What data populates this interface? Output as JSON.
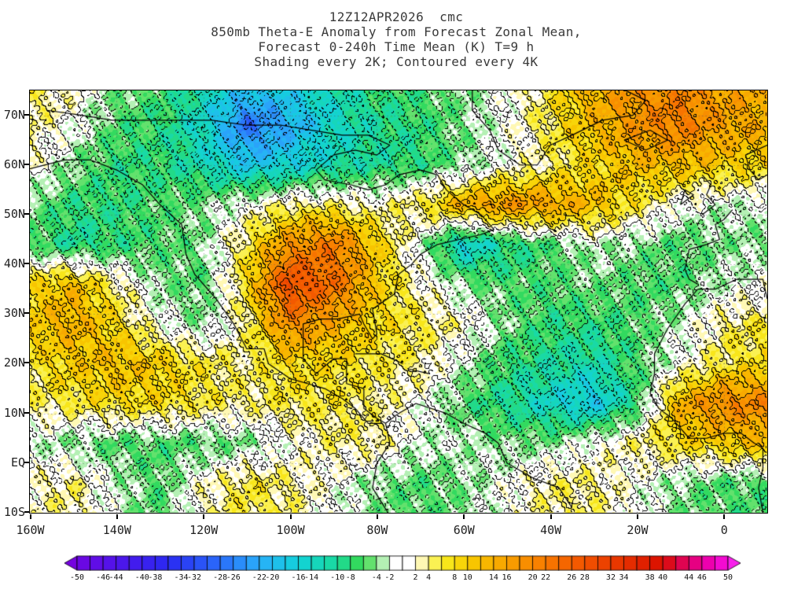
{
  "title": {
    "line1": "12Z12APR2026  cmc",
    "line2": "850mb Theta-E Anomaly from Forecast Zonal Mean,",
    "line3": "Forecast 0-240h Time Mean (K) T=9 h",
    "line4": "Shading every 2K; Contoured every 4K"
  },
  "chart_data": {
    "type": "heatmap",
    "subtype": "filled-contour-anomaly-map",
    "units": "K",
    "shading_interval_K": 2,
    "contour_interval_K": 4,
    "negative_contours_dashed": true,
    "lon_range": [
      -160,
      10
    ],
    "lat_range": [
      -10,
      75
    ],
    "x_axis": {
      "tick_labels": [
        "160W",
        "140W",
        "120W",
        "100W",
        "80W",
        "60W",
        "40W",
        "20W",
        "0"
      ],
      "tick_lons": [
        -160,
        -140,
        -120,
        -100,
        -80,
        -60,
        -40,
        -20,
        0
      ]
    },
    "y_axis": {
      "tick_labels": [
        "70N",
        "60N",
        "50N",
        "40N",
        "30N",
        "20N",
        "10N",
        "EQ",
        "10S"
      ],
      "tick_lats": [
        70,
        60,
        50,
        40,
        30,
        20,
        10,
        0,
        -10
      ]
    },
    "colorbar": {
      "min": -50,
      "max": 50,
      "step": 2,
      "boundary_labels": [
        "-50",
        "-46",
        "-44",
        "-40",
        "-38",
        "-34",
        "-32",
        "-28",
        "-26",
        "-22",
        "-20",
        "-16",
        "-14",
        "-10",
        "-8",
        "-4",
        "-2",
        "2",
        "4",
        "8",
        "10",
        "14",
        "16",
        "20",
        "22",
        "26",
        "28",
        "32",
        "34",
        "38",
        "40",
        "44",
        "46",
        "50"
      ],
      "boundary_values": [
        -50,
        -46,
        -44,
        -40,
        -38,
        -34,
        -32,
        -28,
        -26,
        -22,
        -20,
        -16,
        -14,
        -10,
        -8,
        -4,
        -2,
        2,
        4,
        8,
        10,
        14,
        16,
        20,
        22,
        26,
        28,
        32,
        34,
        38,
        40,
        44,
        46,
        50
      ],
      "palette_stops": [
        [
          -52,
          "#7a00de"
        ],
        [
          -44,
          "#5014ea"
        ],
        [
          -36,
          "#2a2af2"
        ],
        [
          -28,
          "#2a6cfa"
        ],
        [
          -22,
          "#2aaefa"
        ],
        [
          -16,
          "#12d2da"
        ],
        [
          -10,
          "#1ada9c"
        ],
        [
          -6,
          "#3ada4a"
        ],
        [
          -3,
          "#b4f0b4"
        ],
        [
          0,
          "#ffffff"
        ],
        [
          3,
          "#fff8b4"
        ],
        [
          6,
          "#f8ee22"
        ],
        [
          10,
          "#f8cc00"
        ],
        [
          16,
          "#f8a200"
        ],
        [
          22,
          "#f87a00"
        ],
        [
          28,
          "#f25200"
        ],
        [
          34,
          "#e63200"
        ],
        [
          40,
          "#da0e00"
        ],
        [
          44,
          "#e2006c"
        ],
        [
          48,
          "#f000c4"
        ],
        [
          52,
          "#fa2af8"
        ]
      ]
    },
    "grid": {
      "lons": [
        -160,
        -150,
        -140,
        -130,
        -120,
        -110,
        -100,
        -90,
        -80,
        -70,
        -60,
        -50,
        -40,
        -30,
        -20,
        -10,
        0,
        10
      ],
      "lats": [
        76,
        68,
        60,
        52,
        44,
        36,
        28,
        20,
        12,
        4,
        -4,
        -12
      ],
      "values_K": [
        [
          6,
          2,
          -4,
          -6,
          -12,
          -18,
          -16,
          -12,
          -8,
          -6,
          -4,
          0,
          6,
          14,
          18,
          20,
          16,
          14
        ],
        [
          4,
          0,
          -6,
          -8,
          -14,
          -28,
          -22,
          -14,
          -10,
          -8,
          -4,
          0,
          6,
          12,
          18,
          22,
          16,
          14
        ],
        [
          2,
          -4,
          -8,
          -8,
          -12,
          -18,
          -16,
          -12,
          -10,
          -8,
          -4,
          0,
          4,
          8,
          12,
          12,
          10,
          8
        ],
        [
          -4,
          -8,
          -8,
          -6,
          -4,
          0,
          4,
          4,
          2,
          6,
          14,
          18,
          16,
          12,
          6,
          0,
          -2,
          -2
        ],
        [
          -6,
          -10,
          -8,
          -6,
          -4,
          6,
          18,
          22,
          10,
          -2,
          -16,
          -10,
          -6,
          -2,
          -4,
          -6,
          -4,
          -4
        ],
        [
          8,
          12,
          4,
          -4,
          -6,
          8,
          30,
          24,
          10,
          2,
          -4,
          -6,
          -6,
          -4,
          -6,
          -6,
          -2,
          0
        ],
        [
          10,
          14,
          8,
          0,
          -4,
          4,
          20,
          14,
          8,
          6,
          2,
          -4,
          -8,
          -8,
          -6,
          -2,
          4,
          6
        ],
        [
          6,
          10,
          12,
          10,
          6,
          4,
          8,
          8,
          6,
          4,
          -2,
          -8,
          -10,
          -12,
          -6,
          0,
          6,
          8
        ],
        [
          4,
          6,
          8,
          8,
          6,
          4,
          6,
          6,
          4,
          0,
          -6,
          -10,
          -14,
          -18,
          -8,
          14,
          20,
          20
        ],
        [
          -2,
          -4,
          -6,
          -6,
          -6,
          -4,
          0,
          4,
          4,
          -2,
          -2,
          -4,
          -4,
          0,
          4,
          8,
          10,
          12
        ],
        [
          2,
          4,
          -2,
          -6,
          2,
          6,
          4,
          0,
          -4,
          -6,
          -4,
          0,
          4,
          4,
          0,
          -4,
          -6,
          -6
        ],
        [
          2,
          4,
          -2,
          -6,
          2,
          6,
          4,
          0,
          -4,
          -6,
          -4,
          0,
          4,
          4,
          0,
          -4,
          -6,
          -6
        ]
      ]
    },
    "coastlines": [
      [
        [
          -166,
          66
        ],
        [
          -161,
          59
        ],
        [
          -152,
          61
        ],
        [
          -146,
          61
        ],
        [
          -140,
          59
        ],
        [
          -134,
          56
        ],
        [
          -130,
          52
        ],
        [
          -125,
          48
        ],
        [
          -124,
          42
        ],
        [
          -122,
          38
        ],
        [
          -117,
          33
        ],
        [
          -113,
          28
        ],
        [
          -110,
          23
        ],
        [
          -106,
          23
        ],
        [
          -105,
          20
        ],
        [
          -100,
          17
        ],
        [
          -96,
          16
        ],
        [
          -92,
          15
        ],
        [
          -88,
          13
        ],
        [
          -85,
          11
        ],
        [
          -82,
          8
        ],
        [
          -79,
          8
        ]
      ],
      [
        [
          -156,
          71
        ],
        [
          -148,
          70
        ],
        [
          -141,
          69
        ],
        [
          -134,
          69
        ],
        [
          -126,
          69
        ],
        [
          -118,
          69
        ],
        [
          -110,
          68
        ],
        [
          -102,
          68
        ],
        [
          -95,
          67
        ],
        [
          -88,
          66
        ],
        [
          -82,
          66
        ],
        [
          -77,
          64
        ]
      ],
      [
        [
          -77,
          64
        ],
        [
          -80,
          62
        ],
        [
          -85,
          63
        ],
        [
          -90,
          62
        ],
        [
          -94,
          59
        ],
        [
          -92,
          57
        ],
        [
          -86,
          56
        ],
        [
          -82,
          55
        ],
        [
          -78,
          56
        ],
        [
          -75,
          58
        ],
        [
          -70,
          59
        ],
        [
          -66,
          58
        ],
        [
          -64,
          55
        ],
        [
          -60,
          52
        ],
        [
          -56,
          50
        ],
        [
          -53,
          47
        ]
      ],
      [
        [
          -53,
          47
        ],
        [
          -56,
          46
        ],
        [
          -61,
          45
        ],
        [
          -66,
          44
        ],
        [
          -70,
          42
        ],
        [
          -72,
          40
        ],
        [
          -75,
          38
        ],
        [
          -76,
          34
        ],
        [
          -81,
          31
        ],
        [
          -80,
          26
        ],
        [
          -81,
          25
        ],
        [
          -83,
          28
        ],
        [
          -84,
          30
        ],
        [
          -89,
          29
        ],
        [
          -93,
          29
        ],
        [
          -97,
          28
        ],
        [
          -97,
          25
        ],
        [
          -97,
          21
        ]
      ],
      [
        [
          -97,
          21
        ],
        [
          -94,
          18
        ],
        [
          -90,
          21
        ],
        [
          -87,
          21
        ],
        [
          -87,
          16
        ],
        [
          -83,
          15
        ],
        [
          -83,
          11
        ],
        [
          -80,
          9
        ],
        [
          -78,
          8
        ]
      ],
      [
        [
          -85,
          22
        ],
        [
          -79,
          22
        ],
        [
          -74,
          20
        ]
      ],
      [
        [
          -73,
          19
        ],
        [
          -68,
          18
        ]
      ],
      [
        [
          -78,
          8
        ],
        [
          -77,
          4
        ],
        [
          -80,
          0
        ],
        [
          -81,
          -5
        ],
        [
          -76,
          -12
        ]
      ],
      [
        [
          -78,
          8
        ],
        [
          -75,
          10
        ],
        [
          -71,
          12
        ],
        [
          -64,
          10
        ],
        [
          -60,
          8
        ],
        [
          -55,
          6
        ],
        [
          -52,
          4
        ],
        [
          -50,
          0
        ],
        [
          -44,
          -3
        ],
        [
          -38,
          -5
        ],
        [
          -35,
          -9
        ]
      ],
      [
        [
          -58,
          75
        ],
        [
          -58,
          71
        ],
        [
          -54,
          67
        ],
        [
          -52,
          63
        ],
        [
          -47,
          60
        ],
        [
          -43,
          60
        ],
        [
          -40,
          64
        ],
        [
          -35,
          66
        ],
        [
          -28,
          69
        ],
        [
          -21,
          70
        ],
        [
          -18,
          73
        ],
        [
          -25,
          76
        ],
        [
          -40,
          77
        ],
        [
          -52,
          77
        ],
        [
          -58,
          75
        ]
      ],
      [
        [
          -23,
          65
        ],
        [
          -18,
          63
        ],
        [
          -13,
          65
        ],
        [
          -17,
          67
        ],
        [
          -23,
          65
        ]
      ],
      [
        [
          -5,
          50
        ],
        [
          -2,
          52
        ],
        [
          -4,
          54
        ],
        [
          -3,
          56
        ],
        [
          -5,
          58
        ]
      ],
      [
        [
          -10,
          52
        ],
        [
          -7,
          54
        ],
        [
          -9,
          55
        ],
        [
          -10,
          52
        ]
      ],
      [
        [
          2,
          51
        ],
        [
          0,
          49
        ],
        [
          -2,
          48
        ],
        [
          -1,
          45
        ],
        [
          -4,
          44
        ],
        [
          -8,
          43
        ],
        [
          -9,
          39
        ],
        [
          -8,
          37
        ],
        [
          -6,
          36
        ]
      ],
      [
        [
          -6,
          35
        ],
        [
          -2,
          35
        ],
        [
          3,
          37
        ],
        [
          9,
          37
        ],
        [
          10,
          33
        ]
      ],
      [
        [
          -6,
          35
        ],
        [
          -9,
          32
        ],
        [
          -13,
          27
        ],
        [
          -16,
          22
        ],
        [
          -16,
          18
        ],
        [
          -17,
          14
        ],
        [
          -15,
          11
        ],
        [
          -12,
          9
        ],
        [
          -8,
          5
        ],
        [
          -4,
          5
        ],
        [
          0,
          6
        ],
        [
          4,
          6
        ],
        [
          7,
          4
        ],
        [
          9,
          3
        ],
        [
          9,
          -1
        ],
        [
          8,
          -5
        ],
        [
          9,
          -10
        ]
      ],
      [
        [
          10,
          64
        ],
        [
          5,
          62
        ],
        [
          6,
          59
        ],
        [
          8,
          57
        ],
        [
          10,
          58
        ]
      ]
    ]
  }
}
